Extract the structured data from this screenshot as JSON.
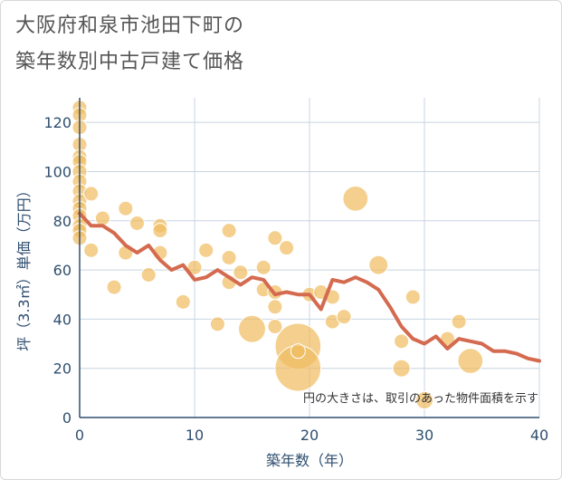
{
  "title_line1": "大阪府和泉市池田下町の",
  "title_line2": "築年数別中古戸建て価格",
  "colors": {
    "bubble": "#f0bd63",
    "bubble_stroke": "#ffffff",
    "line": "#d46a4f",
    "grid": "#c8d4e2",
    "axis": "#2f4f6f"
  },
  "chart_data": {
    "type": "scatter",
    "xlabel": "築年数（年）",
    "ylabel": "坪（3.3㎡）単価（万円）",
    "xlim": [
      0,
      40
    ],
    "ylim": [
      0,
      130
    ],
    "xticks": [
      "0",
      "10",
      "20",
      "30",
      "40"
    ],
    "yticks": [
      "0",
      "20",
      "40",
      "60",
      "80",
      "100",
      "120"
    ],
    "grid": true,
    "note": "円の大きさは、取引のあった物件面積を示す",
    "bubbles": [
      {
        "x": 0,
        "y": 126,
        "s": 1
      },
      {
        "x": 0,
        "y": 123,
        "s": 1
      },
      {
        "x": 0,
        "y": 118,
        "s": 1
      },
      {
        "x": 0,
        "y": 111,
        "s": 1
      },
      {
        "x": 0,
        "y": 106,
        "s": 1
      },
      {
        "x": 0,
        "y": 104,
        "s": 1
      },
      {
        "x": 0,
        "y": 100,
        "s": 1
      },
      {
        "x": 0,
        "y": 96,
        "s": 1
      },
      {
        "x": 0,
        "y": 92,
        "s": 1
      },
      {
        "x": 0,
        "y": 88,
        "s": 1
      },
      {
        "x": 0,
        "y": 85,
        "s": 1
      },
      {
        "x": 0,
        "y": 82,
        "s": 1
      },
      {
        "x": 0,
        "y": 78,
        "s": 1
      },
      {
        "x": 0,
        "y": 76,
        "s": 1
      },
      {
        "x": 0,
        "y": 73,
        "s": 1
      },
      {
        "x": 1,
        "y": 91,
        "s": 1
      },
      {
        "x": 1,
        "y": 68,
        "s": 1
      },
      {
        "x": 2,
        "y": 81,
        "s": 1
      },
      {
        "x": 3,
        "y": 53,
        "s": 1
      },
      {
        "x": 4,
        "y": 85,
        "s": 1
      },
      {
        "x": 4,
        "y": 67,
        "s": 1
      },
      {
        "x": 5,
        "y": 79,
        "s": 1
      },
      {
        "x": 6,
        "y": 58,
        "s": 1
      },
      {
        "x": 7,
        "y": 78,
        "s": 1
      },
      {
        "x": 7,
        "y": 76,
        "s": 1
      },
      {
        "x": 7,
        "y": 67,
        "s": 1
      },
      {
        "x": 9,
        "y": 47,
        "s": 1
      },
      {
        "x": 10,
        "y": 61,
        "s": 1
      },
      {
        "x": 11,
        "y": 68,
        "s": 1
      },
      {
        "x": 12,
        "y": 38,
        "s": 1
      },
      {
        "x": 13,
        "y": 76,
        "s": 1
      },
      {
        "x": 13,
        "y": 65,
        "s": 1
      },
      {
        "x": 13,
        "y": 55,
        "s": 1
      },
      {
        "x": 14,
        "y": 59,
        "s": 1
      },
      {
        "x": 15,
        "y": 36,
        "s": 3.5
      },
      {
        "x": 16,
        "y": 61,
        "s": 1
      },
      {
        "x": 16,
        "y": 52,
        "s": 1
      },
      {
        "x": 17,
        "y": 73,
        "s": 1
      },
      {
        "x": 17,
        "y": 51,
        "s": 1
      },
      {
        "x": 17,
        "y": 45,
        "s": 1
      },
      {
        "x": 17,
        "y": 37,
        "s": 1
      },
      {
        "x": 18,
        "y": 69,
        "s": 1
      },
      {
        "x": 19,
        "y": 29,
        "s": 10
      },
      {
        "x": 19,
        "y": 20,
        "s": 10
      },
      {
        "x": 19,
        "y": 27,
        "s": 1
      },
      {
        "x": 20,
        "y": 50,
        "s": 1
      },
      {
        "x": 21,
        "y": 51,
        "s": 1
      },
      {
        "x": 22,
        "y": 49,
        "s": 1
      },
      {
        "x": 22,
        "y": 39,
        "s": 1
      },
      {
        "x": 23,
        "y": 41,
        "s": 1
      },
      {
        "x": 24,
        "y": 89,
        "s": 3
      },
      {
        "x": 26,
        "y": 62,
        "s": 1.7
      },
      {
        "x": 28,
        "y": 31,
        "s": 1
      },
      {
        "x": 28,
        "y": 20,
        "s": 1.4
      },
      {
        "x": 29,
        "y": 49,
        "s": 1
      },
      {
        "x": 30,
        "y": 7,
        "s": 1.4
      },
      {
        "x": 32,
        "y": 32,
        "s": 1
      },
      {
        "x": 33,
        "y": 39,
        "s": 1
      },
      {
        "x": 34,
        "y": 23,
        "s": 3
      }
    ],
    "series": [
      {
        "x": [
          0,
          1,
          2,
          3,
          4,
          5,
          6,
          7,
          8,
          9,
          10,
          11,
          12,
          13,
          14,
          15,
          16,
          17,
          18,
          19,
          20,
          21,
          22,
          23,
          24,
          25,
          26,
          27,
          28,
          29,
          30,
          31,
          32,
          33,
          34,
          35,
          36,
          37,
          38,
          39,
          40
        ],
        "values": [
          83,
          78,
          78,
          75,
          70,
          67,
          70,
          64,
          60,
          62,
          56,
          57,
          60,
          57,
          54,
          57,
          56,
          50,
          51,
          50,
          50,
          44,
          56,
          55,
          57,
          55,
          52,
          45,
          37,
          32,
          30,
          33,
          28,
          32,
          31,
          30,
          27,
          27,
          26,
          24,
          23
        ]
      }
    ]
  }
}
